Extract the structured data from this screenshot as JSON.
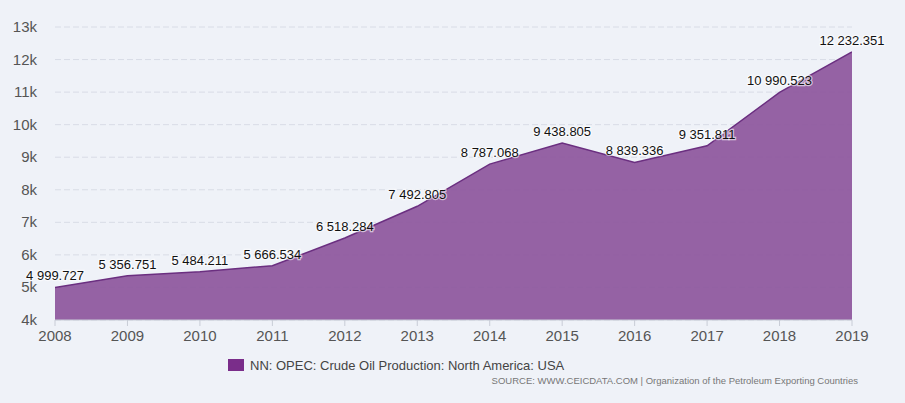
{
  "chart_data": {
    "type": "area",
    "x": [
      2008,
      2009,
      2010,
      2011,
      2012,
      2013,
      2014,
      2015,
      2016,
      2017,
      2018,
      2019
    ],
    "xlim": [
      2008,
      2019
    ],
    "xticks": [
      2008,
      2009,
      2010,
      2011,
      2012,
      2013,
      2014,
      2015,
      2016,
      2017,
      2018,
      2019
    ],
    "ylim": [
      4000,
      13000
    ],
    "yticks": [
      {
        "value": 4000,
        "label": "4k"
      },
      {
        "value": 5000,
        "label": "5k"
      },
      {
        "value": 6000,
        "label": "6k"
      },
      {
        "value": 7000,
        "label": "7k"
      },
      {
        "value": 8000,
        "label": "8k"
      },
      {
        "value": 9000,
        "label": "9k"
      },
      {
        "value": 10000,
        "label": "10k"
      },
      {
        "value": 11000,
        "label": "11k"
      },
      {
        "value": 12000,
        "label": "12k"
      },
      {
        "value": 13000,
        "label": "13k"
      }
    ],
    "grid": true,
    "legend": "bottom",
    "data_labels": true,
    "source": "SOURCE: WWW.CEICDATA.COM | Organization of the Petroleum Exporting Countries",
    "series": [
      {
        "name": "NN: OPEC: Crude Oil Production: North America: USA",
        "color": "#8f5a9f",
        "values": [
          4999.727,
          5356.751,
          5484.211,
          5666.534,
          6518.284,
          7492.805,
          8787.068,
          9438.805,
          8839.336,
          9351.811,
          10990.523,
          12232.351
        ],
        "value_labels": [
          "4 999.727",
          "5 356.751",
          "5 484.211",
          "5 666.534",
          "6 518.284",
          "7 492.805",
          "8 787.068",
          "9 438.805",
          "8 839.336",
          "9 351.811",
          "10 990.523",
          "12 232.351"
        ]
      }
    ]
  }
}
